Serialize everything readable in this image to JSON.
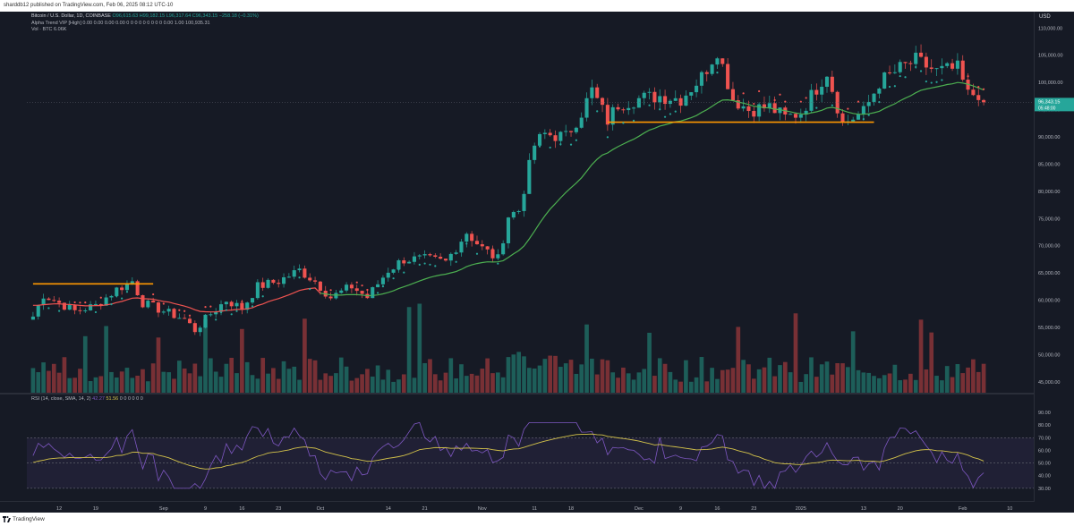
{
  "header": {
    "published_text": "sharddb12 published on TradingView.com, Feb 06, 2025 08:12 UTC-10"
  },
  "legend": {
    "symbol": "Bitcoin / U.S. Dollar, 1D, COINBASE",
    "ohlc": "O96,615.63  H99,182.15  L96,317.64  C96,343.15  −258.18 (−0.31%)",
    "indicator_line": "Alpha Trend VIP [High]  0.00  0.00  0.00  0.00  0 0 0 0 0 0 0 0 0  0.00  1.00  100,935.31",
    "volume_line": "Vol · BTC  6.06K"
  },
  "rsi_legend": {
    "label": "RSI (14, close, SMA, 14, 2)",
    "value1": "42.27",
    "value2": "51.56",
    "zeros": "0 0 0 0 0 0"
  },
  "price_axis": {
    "currency": "USD",
    "ticks": [
      "110,000.00",
      "105,000.00",
      "100,000.00",
      "95,000.00",
      "90,000.00",
      "85,000.00",
      "80,000.00",
      "75,000.00",
      "70,000.00",
      "65,000.00",
      "60,000.00",
      "55,000.00",
      "50,000.00",
      "45,000.00"
    ],
    "current_price_label": "96,343.15",
    "countdown_label": "05:48:00"
  },
  "rsi_axis": {
    "ticks": [
      "90.00",
      "80.00",
      "70.00",
      "60.00",
      "50.00",
      "40.00",
      "30.00"
    ]
  },
  "time_axis": {
    "ticks": [
      "12",
      "19",
      "Sep",
      "9",
      "16",
      "23",
      "Oct",
      "14",
      "21",
      "Nov",
      "11",
      "18",
      "Dec",
      "9",
      "16",
      "23",
      "2025",
      "13",
      "20",
      "Feb",
      "10"
    ]
  },
  "footer": {
    "brand": "TradingView"
  },
  "colors": {
    "up": "#26a69a",
    "down": "#ef5350",
    "background": "#161a25",
    "trend_line": "#4caf50",
    "resistance": "#ff9800",
    "rsi_line": "#7e57c2",
    "rsi_ma": "#d4c34a",
    "marker_R_up": "#26a69a",
    "marker_B": "#2962ff",
    "marker_T": "#ffeb3b"
  },
  "chart_data": {
    "type": "candlestick",
    "title": "Bitcoin / U.S. Dollar, 1D, COINBASE",
    "x_start": "Aug 07 2024",
    "x_end": "Feb 05 2025",
    "ylim": [
      43000,
      113000
    ],
    "grid": false,
    "close_path": [
      [
        "Aug 07",
        57000
      ],
      [
        "Aug 09",
        61000
      ],
      [
        "Aug 12",
        59500
      ],
      [
        "Aug 15",
        58000
      ],
      [
        "Aug 19",
        59000
      ],
      [
        "Aug 23",
        62000
      ],
      [
        "Aug 26",
        63500
      ],
      [
        "Aug 28",
        59500
      ],
      [
        "Sep 01",
        58000
      ],
      [
        "Sep 05",
        56500
      ],
      [
        "Sep 07",
        54500
      ],
      [
        "Sep 10",
        57500
      ],
      [
        "Sep 13",
        60000
      ],
      [
        "Sep 16",
        58500
      ],
      [
        "Sep 19",
        62500
      ],
      [
        "Sep 23",
        63500
      ],
      [
        "Sep 27",
        65500
      ],
      [
        "Sep 30",
        63500
      ],
      [
        "Oct 03",
        60500
      ],
      [
        "Oct 07",
        62500
      ],
      [
        "Oct 10",
        60500
      ],
      [
        "Oct 14",
        65500
      ],
      [
        "Oct 17",
        67500
      ],
      [
        "Oct 21",
        67500
      ],
      [
        "Oct 25",
        67000
      ],
      [
        "Oct 29",
        72500
      ],
      [
        "Nov 01",
        69500
      ],
      [
        "Nov 04",
        67500
      ],
      [
        "Nov 06",
        75500
      ],
      [
        "Nov 08",
        76500
      ],
      [
        "Nov 11",
        88500
      ],
      [
        "Nov 13",
        90500
      ],
      [
        "Nov 17",
        90000
      ],
      [
        "Nov 20",
        94500
      ],
      [
        "Nov 22",
        98500
      ],
      [
        "Nov 25",
        93000
      ],
      [
        "Nov 27",
        96000
      ],
      [
        "Dec 01",
        97000
      ],
      [
        "Dec 05",
        97500
      ],
      [
        "Dec 09",
        97000
      ],
      [
        "Dec 13",
        101000
      ],
      [
        "Dec 16",
        106000
      ],
      [
        "Dec 19",
        97000
      ],
      [
        "Dec 22",
        95000
      ],
      [
        "Dec 26",
        95500
      ],
      [
        "Dec 29",
        93500
      ],
      [
        "Jan 01",
        94500
      ],
      [
        "Jan 06",
        102000
      ],
      [
        "Jan 09",
        92500
      ],
      [
        "Jan 13",
        94500
      ],
      [
        "Jan 16",
        100000
      ],
      [
        "Jan 20",
        102500
      ],
      [
        "Jan 23",
        104000
      ],
      [
        "Jan 27",
        102000
      ],
      [
        "Jan 31",
        102500
      ],
      [
        "Feb 02",
        97700
      ],
      [
        "Feb 04",
        98000
      ],
      [
        "Feb 05",
        96343
      ]
    ],
    "series": [
      {
        "name": "Alpha Trend VIP"
      },
      {
        "name": "Vol · BTC"
      },
      {
        "name": "RSI (14, close, SMA, 14, 2)",
        "last": 42.27
      },
      {
        "name": "RSI SMA",
        "last": 51.56
      }
    ],
    "levels": [
      {
        "label": "resistance",
        "y": 63000,
        "from": "Aug 07",
        "to": "Aug 30"
      },
      {
        "label": "support",
        "y": 92700,
        "from": "Nov 25",
        "to": "Jan 15"
      }
    ]
  }
}
